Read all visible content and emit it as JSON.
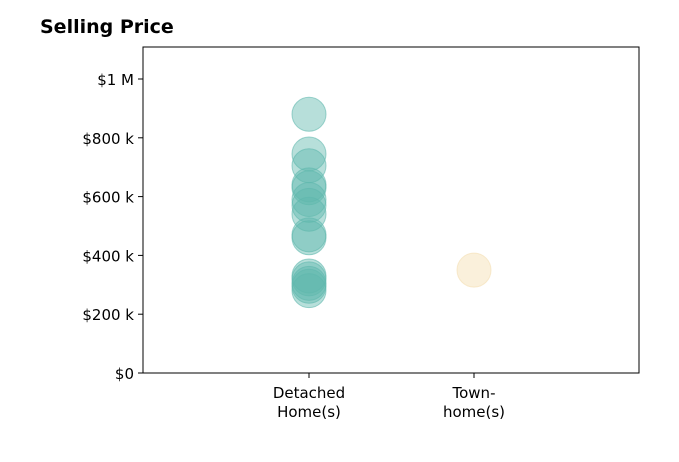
{
  "chart_data": {
    "type": "scatter",
    "title": "Selling Price",
    "xlabel": "",
    "ylabel": "",
    "categories": [
      [
        "Detached",
        "Home(s)"
      ],
      [
        "Town-",
        "home(s)"
      ]
    ],
    "ylim": [
      0,
      1000000
    ],
    "yticks": [
      0,
      200000,
      400000,
      600000,
      800000,
      1000000
    ],
    "ytick_labels": [
      "$0",
      "$200 k",
      "$400 k",
      "$600 k",
      "$800 k",
      "$1 M"
    ],
    "grid": false,
    "legend": "none",
    "series": [
      {
        "category_index": 0,
        "color": "#5fb7ad",
        "values": [
          880000,
          745000,
          705000,
          640000,
          630000,
          590000,
          570000,
          540000,
          470000,
          460000,
          330000,
          320000,
          305000,
          295000,
          280000
        ]
      },
      {
        "category_index": 1,
        "color": "#f4deb0",
        "values": [
          350000
        ]
      }
    ]
  }
}
